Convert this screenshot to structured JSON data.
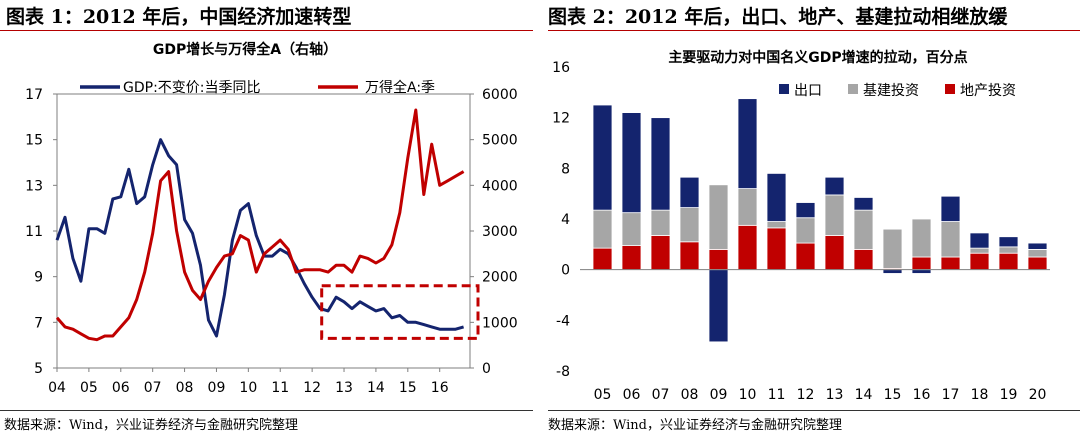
{
  "left_figure": {
    "title": "图表 1：2012 年后，中国经济加速转型",
    "source": "数据来源：Wind，兴业证券经济与金融研究院整理"
  },
  "right_figure": {
    "title": "图表 2：2012 年后，出口、地产、基建拉动相继放缓",
    "source": "数据来源：Wind，兴业证券经济与金融研究院整理"
  },
  "colors": {
    "navy": "#14246e",
    "red": "#c00000",
    "gray": "#a6a6a6",
    "dash_box": "#c00000"
  },
  "chart_data": [
    {
      "type": "line",
      "title": "GDP增长与万得全A（右轴）",
      "x_tick_labels": [
        "04",
        "05",
        "06",
        "07",
        "08",
        "09",
        "10",
        "11",
        "12",
        "13",
        "14",
        "15",
        "16"
      ],
      "y_left": {
        "ticks": [
          5,
          7,
          9,
          11,
          13,
          15,
          17
        ],
        "range": [
          5,
          17
        ]
      },
      "y_right": {
        "ticks": [
          0,
          1000,
          2000,
          3000,
          4000,
          5000,
          6000
        ],
        "range": [
          0,
          6000
        ]
      },
      "x_range": [
        2004.0,
        2016.95
      ],
      "legend_placement": "top",
      "annotation": "dashed red rectangle highlighting 2012–2016",
      "series": [
        {
          "name": "GDP:不变价:当季同比",
          "axis": "left",
          "color_key": "navy",
          "x": [
            2004.0,
            2004.25,
            2004.5,
            2004.75,
            2005.0,
            2005.25,
            2005.5,
            2005.75,
            2006.0,
            2006.25,
            2006.5,
            2006.75,
            2007.0,
            2007.25,
            2007.5,
            2007.75,
            2008.0,
            2008.25,
            2008.5,
            2008.75,
            2009.0,
            2009.25,
            2009.5,
            2009.75,
            2010.0,
            2010.25,
            2010.5,
            2010.75,
            2011.0,
            2011.25,
            2011.5,
            2011.75,
            2012.0,
            2012.25,
            2012.5,
            2012.75,
            2013.0,
            2013.25,
            2013.5,
            2013.75,
            2014.0,
            2014.25,
            2014.5,
            2014.75,
            2015.0,
            2015.25,
            2015.5,
            2015.75,
            2016.0,
            2016.25,
            2016.5,
            2016.75
          ],
          "values": [
            10.6,
            11.6,
            9.8,
            8.8,
            11.1,
            11.1,
            10.9,
            12.4,
            12.5,
            13.7,
            12.2,
            12.5,
            13.9,
            15.0,
            14.3,
            13.9,
            11.5,
            10.9,
            9.5,
            7.1,
            6.4,
            8.2,
            10.6,
            11.9,
            12.2,
            10.8,
            9.9,
            9.9,
            10.2,
            10.0,
            9.4,
            8.7,
            8.1,
            7.6,
            7.5,
            8.1,
            7.9,
            7.6,
            7.9,
            7.7,
            7.5,
            7.6,
            7.2,
            7.3,
            7.0,
            7.0,
            6.9,
            6.8,
            6.7,
            6.7,
            6.7,
            6.8
          ]
        },
        {
          "name": "万得全A:季",
          "axis": "right",
          "color_key": "red",
          "x": [
            2004.0,
            2004.25,
            2004.5,
            2004.75,
            2005.0,
            2005.25,
            2005.5,
            2005.75,
            2006.0,
            2006.25,
            2006.5,
            2006.75,
            2007.0,
            2007.25,
            2007.5,
            2007.75,
            2008.0,
            2008.25,
            2008.5,
            2008.75,
            2009.0,
            2009.25,
            2009.5,
            2009.75,
            2010.0,
            2010.25,
            2010.5,
            2010.75,
            2011.0,
            2011.25,
            2011.5,
            2011.75,
            2012.0,
            2012.25,
            2012.5,
            2012.75,
            2013.0,
            2013.25,
            2013.5,
            2013.75,
            2014.0,
            2014.25,
            2014.5,
            2014.75,
            2015.0,
            2015.25,
            2015.5,
            2015.75,
            2016.0,
            2016.25,
            2016.5,
            2016.75
          ],
          "values": [
            1100,
            900,
            850,
            750,
            650,
            620,
            700,
            700,
            900,
            1100,
            1500,
            2100,
            2950,
            4100,
            4300,
            3000,
            2100,
            1700,
            1500,
            1900,
            2200,
            2450,
            2500,
            2900,
            2800,
            2100,
            2500,
            2650,
            2800,
            2600,
            2100,
            2150,
            2150,
            2150,
            2100,
            2250,
            2250,
            2100,
            2450,
            2400,
            2300,
            2400,
            2700,
            3400,
            4600,
            5650,
            3800,
            4900,
            4000,
            4100,
            4200,
            4300
          ]
        }
      ]
    },
    {
      "type": "bar",
      "stacked": true,
      "title": "主要驱动力对中国名义GDP增速的拉动，百分点",
      "categories": [
        "05",
        "06",
        "07",
        "08",
        "09",
        "10",
        "11",
        "12",
        "13",
        "14",
        "15",
        "16",
        "17",
        "18",
        "19",
        "20"
      ],
      "y_ticks": [
        -8,
        -4,
        0,
        4,
        8,
        12,
        16
      ],
      "ylim": [
        -8,
        16
      ],
      "legend_placement": "top",
      "series": [
        {
          "name": "出口",
          "color_key": "navy",
          "values": [
            8.3,
            7.9,
            7.3,
            2.4,
            -5.7,
            7.1,
            3.8,
            1.2,
            1.4,
            1.0,
            -0.3,
            -0.3,
            2.0,
            1.2,
            0.8,
            0.5
          ]
        },
        {
          "name": "基建投资",
          "color_key": "gray",
          "values": [
            3.0,
            2.6,
            2.0,
            2.7,
            5.1,
            2.9,
            0.5,
            2.0,
            3.2,
            3.1,
            3.1,
            3.0,
            2.8,
            0.4,
            0.5,
            0.6
          ]
        },
        {
          "name": "地产投资",
          "color_key": "red",
          "values": [
            1.7,
            1.9,
            2.7,
            2.2,
            1.6,
            3.5,
            3.3,
            2.1,
            2.7,
            1.6,
            0.1,
            1.0,
            1.0,
            1.3,
            1.3,
            1.0
          ]
        }
      ]
    }
  ]
}
